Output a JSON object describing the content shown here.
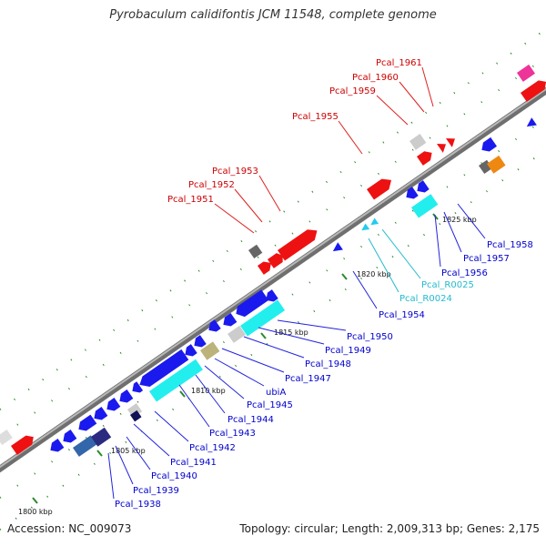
{
  "title": "Pyrobaculum calidifontis JCM 11548, complete genome",
  "accession": "Accession: NC_009073",
  "genome_info": "Topology: circular; Length: 2,009,313 bp; Genes: 2,175",
  "scale_labels": [
    "1800 kbp",
    "1805 kbp",
    "1810 kbp",
    "1815 kbp",
    "1820 kbp",
    "1825 kbp"
  ],
  "upper_labels": [
    "Pcal_1951",
    "Pcal_1952",
    "Pcal_1953",
    "Pcal_1955",
    "Pcal_1959",
    "Pcal_1960",
    "Pcal_1961"
  ],
  "lower_labels": [
    "Pcal_1938",
    "Pcal_1939",
    "Pcal_1940",
    "Pcal_1941",
    "Pcal_1942",
    "Pcal_1943",
    "Pcal_1944",
    "Pcal_1945",
    "ubiA",
    "Pcal_1947",
    "Pcal_1948",
    "Pcal_1949",
    "Pcal_1950",
    "Pcal_1954",
    "Pcal_R0024",
    "Pcal_R0025",
    "Pcal_1956",
    "Pcal_1957",
    "Pcal_1958"
  ],
  "colors": {
    "backbone": "#8c8c8c",
    "forward_gene": "#ee1111",
    "reverse_gene": "#1a1aee",
    "rna_gene": "#22eeee",
    "tick": "#228822",
    "label_forward": "#cc0000",
    "label_reverse": "#0000cc",
    "label_rna": "#22cccc"
  }
}
